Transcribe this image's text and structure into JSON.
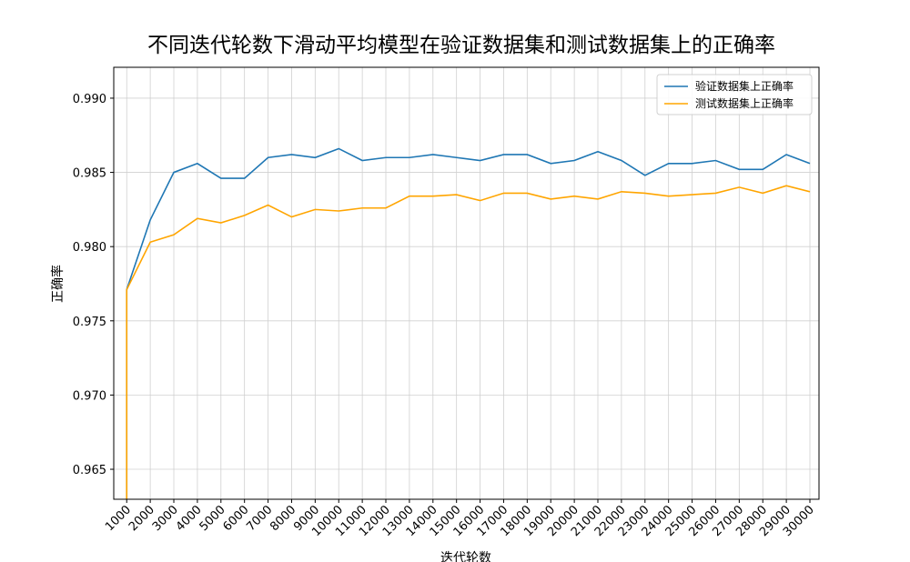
{
  "chart_data": {
    "type": "line",
    "title": "不同迭代轮数下滑动平均模型在验证数据集和测试数据集上的正确率",
    "x_label": "迭代轮数",
    "y_label": "正确率",
    "x": [
      1000,
      1000,
      2000,
      3000,
      4000,
      5000,
      6000,
      7000,
      8000,
      9000,
      10000,
      11000,
      12000,
      13000,
      14000,
      15000,
      16000,
      17000,
      18000,
      19000,
      20000,
      21000,
      22000,
      23000,
      24000,
      25000,
      26000,
      27000,
      28000,
      29000,
      30000
    ],
    "series": [
      {
        "name": "验证数据集上正确率",
        "color": "#1f77b4",
        "values": [
          0.96,
          0.9771,
          0.9818,
          0.985,
          0.9856,
          0.9846,
          0.9846,
          0.986,
          0.9862,
          0.986,
          0.9866,
          0.9858,
          0.986,
          0.986,
          0.9862,
          0.986,
          0.9858,
          0.9862,
          0.9862,
          0.9856,
          0.9858,
          0.9864,
          0.9858,
          0.9848,
          0.9856,
          0.9856,
          0.9858,
          0.9852,
          0.9852,
          0.9862,
          0.9856
        ]
      },
      {
        "name": "测试数据集上正确率",
        "color": "#ffa500",
        "values": [
          0.96,
          0.9771,
          0.9803,
          0.9808,
          0.9819,
          0.9816,
          0.9821,
          0.9828,
          0.982,
          0.9825,
          0.9824,
          0.9826,
          0.9826,
          0.9834,
          0.9834,
          0.9835,
          0.9831,
          0.9836,
          0.9836,
          0.9832,
          0.9834,
          0.9832,
          0.9837,
          0.9836,
          0.9834,
          0.9835,
          0.9836,
          0.984,
          0.9836,
          0.9841,
          0.9837
        ]
      }
    ],
    "xlim": [
      450,
      30386
    ],
    "ylim": [
      0.96298,
      0.99208
    ],
    "xticks": [
      1000,
      2000,
      3000,
      4000,
      5000,
      6000,
      7000,
      8000,
      9000,
      10000,
      11000,
      12000,
      13000,
      14000,
      15000,
      16000,
      17000,
      18000,
      19000,
      20000,
      21000,
      22000,
      23000,
      24000,
      25000,
      26000,
      27000,
      28000,
      29000,
      30000
    ],
    "yticks": [
      {
        "value": 0.965,
        "label": "0.965"
      },
      {
        "value": 0.97,
        "label": "0.970"
      },
      {
        "value": 0.975,
        "label": "0.975"
      },
      {
        "value": 0.98,
        "label": "0.980"
      },
      {
        "value": 0.985,
        "label": "0.985"
      },
      {
        "value": 0.99,
        "label": "0.990"
      }
    ],
    "grid": true,
    "legend": "upper right"
  }
}
